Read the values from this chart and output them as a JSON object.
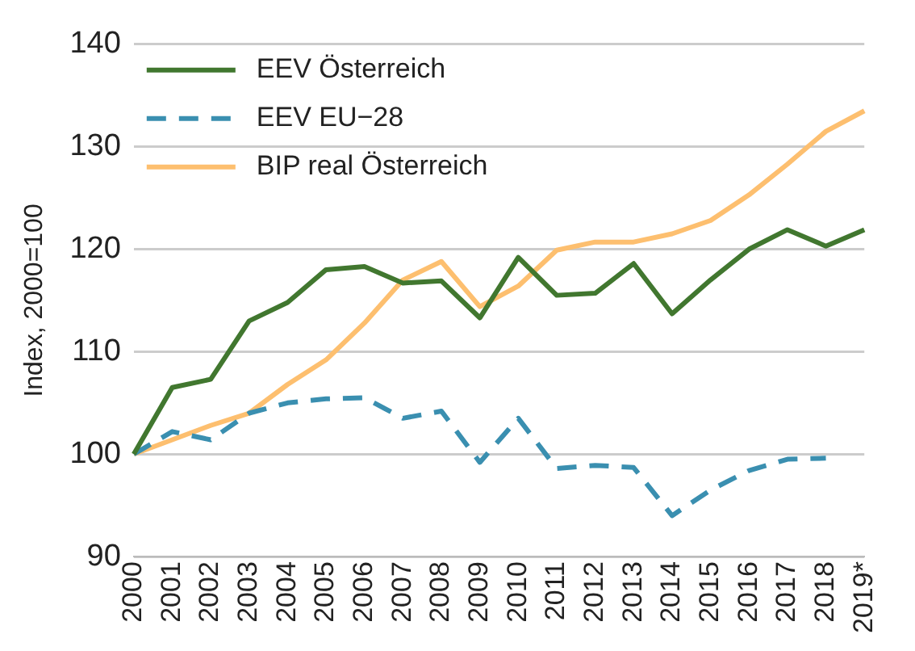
{
  "chart_data": {
    "type": "line",
    "ylabel": "Index, 2000=100",
    "categories": [
      "2000",
      "2001",
      "2002",
      "2003",
      "2004",
      "2005",
      "2006",
      "2007",
      "2008",
      "2009",
      "2010",
      "2011",
      "2012",
      "2013",
      "2014",
      "2015",
      "2016",
      "2017",
      "2018",
      "2019*"
    ],
    "series": [
      {
        "name": "EEV Österreich",
        "color": "#41772f",
        "line_style": "solid",
        "values": [
          100,
          106.5,
          107.3,
          113,
          114.8,
          118,
          118.3,
          116.7,
          116.9,
          113.3,
          119.2,
          115.5,
          115.7,
          118.6,
          113.7,
          117,
          120,
          121.9,
          120.3,
          121.9
        ]
      },
      {
        "name": "EEV EU−28",
        "color": "#3a8fb0",
        "line_style": "dashed",
        "values": [
          100,
          102.2,
          101.4,
          104,
          105,
          105.4,
          105.5,
          103.5,
          104.2,
          99.2,
          103.5,
          98.6,
          98.9,
          98.7,
          94,
          96.5,
          98.4,
          99.5,
          99.6,
          null
        ]
      },
      {
        "name": "BIP real Österreich",
        "color": "#fdbf6f",
        "line_style": "solid",
        "values": [
          100,
          101.4,
          102.8,
          104,
          106.8,
          109.2,
          112.8,
          117,
          118.8,
          114.4,
          116.4,
          119.9,
          120.7,
          120.7,
          121.5,
          122.8,
          125.3,
          128.3,
          131.5,
          133.5
        ]
      }
    ],
    "ylim": [
      90,
      140
    ],
    "yticks": [
      90,
      100,
      110,
      120,
      130,
      140
    ],
    "grid": "y",
    "legend": "top left",
    "marker": "none"
  }
}
